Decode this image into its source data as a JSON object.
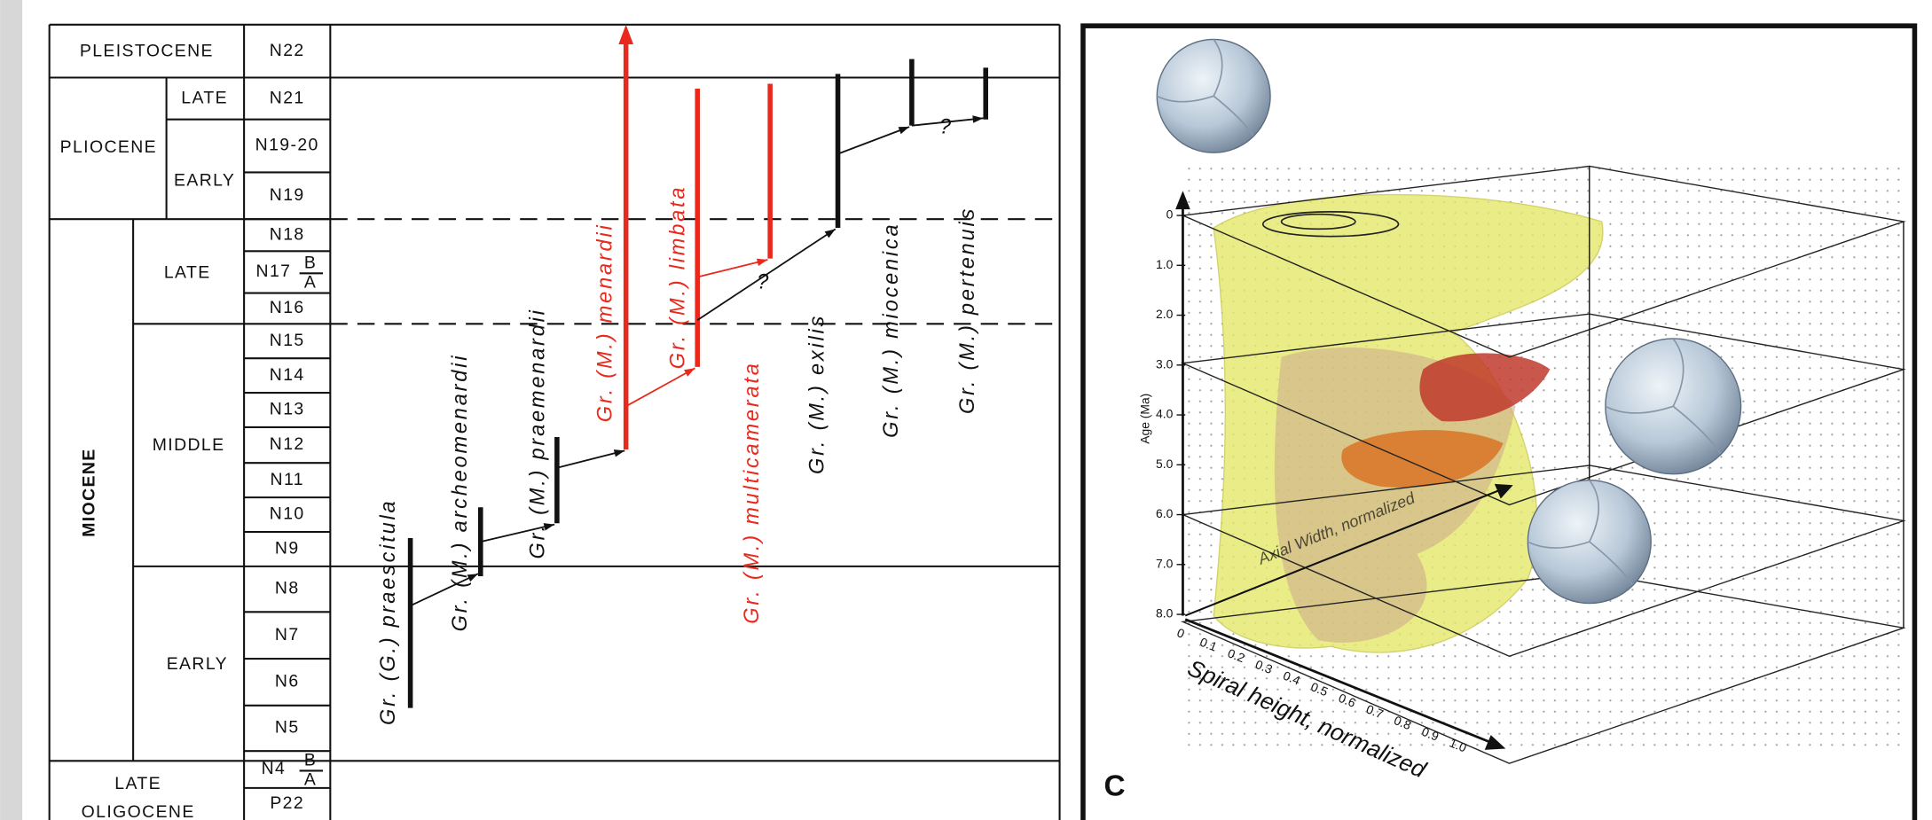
{
  "left_panel": {
    "epochs": {
      "pleistocene": "PLEISTOCENE",
      "pliocene": "PLIOCENE",
      "miocene": "MIOCENE",
      "oligocene_late": "LATE",
      "oligocene": "OLIGOCENE"
    },
    "subepochs": {
      "pliocene_late": "LATE",
      "pliocene_early": "EARLY",
      "miocene_late": "LATE",
      "miocene_middle": "MIDDLE",
      "miocene_early": "EARLY"
    },
    "zones": [
      {
        "label": "N22"
      },
      {
        "label": "N21"
      },
      {
        "label": "N19-20"
      },
      {
        "label": "N19"
      },
      {
        "label": "N18"
      },
      {
        "label": "N17",
        "upper": "B",
        "lower": "A"
      },
      {
        "label": "N16"
      },
      {
        "label": "N15"
      },
      {
        "label": "N14"
      },
      {
        "label": "N13"
      },
      {
        "label": "N12"
      },
      {
        "label": "N11"
      },
      {
        "label": "N10"
      },
      {
        "label": "N9"
      },
      {
        "label": "N8"
      },
      {
        "label": "N7"
      },
      {
        "label": "N6"
      },
      {
        "label": "N5"
      },
      {
        "label": "N4",
        "upper": "B",
        "lower": "A"
      },
      {
        "label": "P22"
      }
    ],
    "species": [
      {
        "label": "Gr. (G.) praescitula"
      },
      {
        "label": "Gr. (M.) archeomenardii"
      },
      {
        "label": "Gr. (M.) praemenardii"
      },
      {
        "label": "Gr. (M.) menardii"
      },
      {
        "label": "Gr. (M.) limbata"
      },
      {
        "label": "Gr. (M.) multicamerata"
      },
      {
        "label": "Gr. (M.) exilis"
      },
      {
        "label": "Gr. (M.) miocenica"
      },
      {
        "label": "Gr. (M.) pertenuis"
      }
    ],
    "question_marks": [
      "?",
      "?"
    ]
  },
  "right_panel": {
    "age_axis_label": "Age (Ma)",
    "age_ticks": [
      "0",
      "1.0",
      "2.0",
      "3.0",
      "4.0",
      "5.0",
      "6.0",
      "7.0",
      "8.0"
    ],
    "spiral_axis_label": "Spiral height, normalized",
    "spiral_ticks": [
      "0",
      "0.1",
      "0.2",
      "0.3",
      "0.4",
      "0.5",
      "0.6",
      "0.7",
      "0.8",
      "0.9",
      "1.0"
    ],
    "axial_axis_label": "Axial Width, normalized",
    "panel_label": "C"
  }
}
